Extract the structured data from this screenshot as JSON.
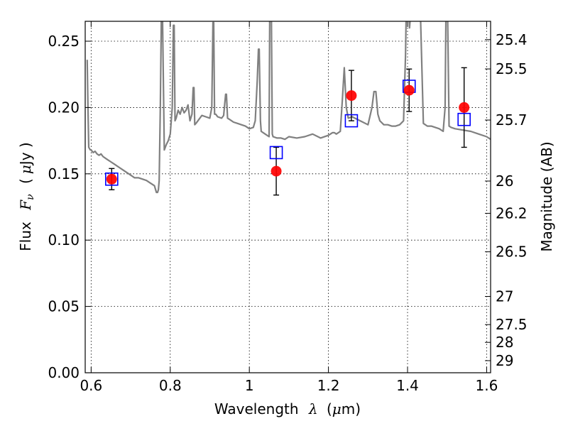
{
  "chart_data": {
    "type": "scatter",
    "xlabel": "Wavelength",
    "xlabel_symbol": "λ",
    "xlabel_unit_open": "(",
    "xlabel_unit_mu": "μ",
    "xlabel_unit_rest": "m)",
    "ylabel": "Flux",
    "ylabel_symbol": "F",
    "ylabel_symbol_sub": "ν",
    "ylabel_unit_open": "(",
    "ylabel_unit_mu": "μ",
    "ylabel_unit_rest": "Jy )",
    "y2label": "Magnitude (AB)",
    "xlim": [
      0.585,
      1.61
    ],
    "ylim": [
      0.0,
      0.265
    ],
    "grid": true,
    "x_ticks": [
      {
        "value": 0.6,
        "label": "0.6"
      },
      {
        "value": 0.8,
        "label": "0.8"
      },
      {
        "value": 1.0,
        "label": "1"
      },
      {
        "value": 1.2,
        "label": "1.2"
      },
      {
        "value": 1.4,
        "label": "1.4"
      },
      {
        "value": 1.6,
        "label": "1.6"
      }
    ],
    "y_ticks": [
      {
        "value": 0.0,
        "label": "0.00"
      },
      {
        "value": 0.05,
        "label": "0.05"
      },
      {
        "value": 0.1,
        "label": "0.10"
      },
      {
        "value": 0.15,
        "label": "0.15"
      },
      {
        "value": 0.2,
        "label": "0.20"
      },
      {
        "value": 0.25,
        "label": "0.25"
      }
    ],
    "y2_ticks": [
      {
        "value": 25.4,
        "label": "25.4"
      },
      {
        "value": 25.5,
        "label": "25.5"
      },
      {
        "value": 25.7,
        "label": "25.7"
      },
      {
        "value": 26.0,
        "label": "26"
      },
      {
        "value": 26.2,
        "label": "26.2"
      },
      {
        "value": 26.5,
        "label": "26.5"
      },
      {
        "value": 27.0,
        "label": "27"
      },
      {
        "value": 27.5,
        "label": "27.5"
      },
      {
        "value": 28.0,
        "label": "28"
      },
      {
        "value": 29.0,
        "label": "29"
      }
    ],
    "series": [
      {
        "kind": "line",
        "color": "#808080",
        "x": [
          0.59,
          0.592,
          0.594,
          0.598,
          0.6,
          0.605,
          0.61,
          0.615,
          0.62,
          0.625,
          0.63,
          0.64,
          0.65,
          0.66,
          0.67,
          0.68,
          0.69,
          0.7,
          0.71,
          0.72,
          0.73,
          0.74,
          0.75,
          0.76,
          0.765,
          0.768,
          0.77,
          0.772,
          0.775,
          0.778,
          0.78,
          0.785,
          0.79,
          0.795,
          0.8,
          0.805,
          0.808,
          0.81,
          0.812,
          0.815,
          0.82,
          0.825,
          0.83,
          0.835,
          0.84,
          0.845,
          0.85,
          0.855,
          0.858,
          0.86,
          0.862,
          0.865,
          0.87,
          0.88,
          0.89,
          0.9,
          0.905,
          0.908,
          0.91,
          0.912,
          0.915,
          0.92,
          0.93,
          0.935,
          0.94,
          0.942,
          0.945,
          0.95,
          0.96,
          0.97,
          0.98,
          0.99,
          1.0,
          1.01,
          1.015,
          1.02,
          1.023,
          1.025,
          1.028,
          1.03,
          1.04,
          1.05,
          1.052,
          1.055,
          1.058,
          1.06,
          1.07,
          1.08,
          1.09,
          1.1,
          1.12,
          1.14,
          1.16,
          1.18,
          1.2,
          1.21,
          1.215,
          1.22,
          1.23,
          1.235,
          1.24,
          1.245,
          1.25,
          1.26,
          1.28,
          1.3,
          1.31,
          1.315,
          1.32,
          1.325,
          1.33,
          1.34,
          1.35,
          1.36,
          1.37,
          1.38,
          1.39,
          1.395,
          1.398,
          1.4,
          1.405,
          1.41,
          1.42,
          1.43,
          1.44,
          1.45,
          1.46,
          1.48,
          1.49,
          1.495,
          1.498,
          1.5,
          1.505,
          1.51,
          1.52,
          1.54,
          1.56,
          1.58,
          1.6,
          1.61
        ],
        "y": [
          0.236,
          0.2,
          0.17,
          0.168,
          0.168,
          0.166,
          0.167,
          0.165,
          0.164,
          0.165,
          0.163,
          0.161,
          0.159,
          0.157,
          0.155,
          0.153,
          0.151,
          0.149,
          0.147,
          0.147,
          0.146,
          0.145,
          0.143,
          0.141,
          0.136,
          0.136,
          0.138,
          0.145,
          0.2,
          0.28,
          0.28,
          0.168,
          0.172,
          0.175,
          0.18,
          0.2,
          0.262,
          0.262,
          0.19,
          0.192,
          0.198,
          0.195,
          0.2,
          0.196,
          0.198,
          0.202,
          0.19,
          0.195,
          0.215,
          0.215,
          0.187,
          0.188,
          0.19,
          0.194,
          0.193,
          0.192,
          0.2,
          0.264,
          0.264,
          0.195,
          0.195,
          0.193,
          0.192,
          0.194,
          0.21,
          0.21,
          0.192,
          0.191,
          0.189,
          0.188,
          0.187,
          0.186,
          0.184,
          0.185,
          0.19,
          0.22,
          0.244,
          0.244,
          0.19,
          0.182,
          0.18,
          0.178,
          0.3,
          0.3,
          0.18,
          0.178,
          0.177,
          0.177,
          0.176,
          0.178,
          0.177,
          0.178,
          0.18,
          0.177,
          0.179,
          0.181,
          0.181,
          0.18,
          0.182,
          0.205,
          0.23,
          0.2,
          0.192,
          0.193,
          0.19,
          0.187,
          0.2,
          0.212,
          0.212,
          0.195,
          0.19,
          0.187,
          0.187,
          0.186,
          0.186,
          0.187,
          0.19,
          0.24,
          0.3,
          0.3,
          0.26,
          0.28,
          0.3,
          0.3,
          0.188,
          0.186,
          0.186,
          0.184,
          0.182,
          0.2,
          0.3,
          0.3,
          0.186,
          0.185,
          0.184,
          0.183,
          0.182,
          0.18,
          0.178,
          0.176
        ]
      },
      {
        "kind": "errorbar",
        "color": "#ff0000",
        "x": [
          0.652,
          1.068,
          1.258,
          1.404,
          1.543
        ],
        "y": [
          0.146,
          0.152,
          0.209,
          0.213,
          0.2
        ],
        "yerr": [
          0.008,
          0.018,
          0.019,
          0.016,
          0.03
        ]
      },
      {
        "kind": "square",
        "color": "#0000ff",
        "x": [
          0.652,
          1.068,
          1.258,
          1.404,
          1.543
        ],
        "y": [
          0.146,
          0.166,
          0.19,
          0.216,
          0.191
        ]
      }
    ]
  }
}
